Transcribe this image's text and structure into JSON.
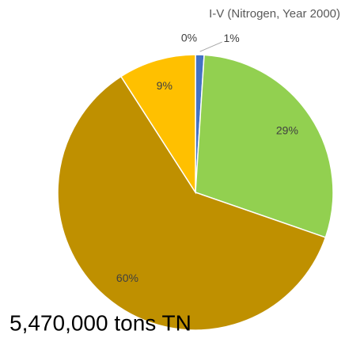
{
  "chart_data": {
    "type": "pie",
    "title": "I-V (Nitrogen, Year 2000)",
    "annotation": "5,470,000 tons TN",
    "categories": [
      null,
      null,
      null,
      null,
      null
    ],
    "values": [
      0,
      1,
      29,
      60,
      9
    ],
    "value_labels": [
      "0%",
      "1%",
      "29%",
      "60%",
      "9%"
    ],
    "colors": [
      "#a5a5a5",
      "#4472c4",
      "#92d050",
      "#bf9000",
      "#ffc000"
    ]
  }
}
